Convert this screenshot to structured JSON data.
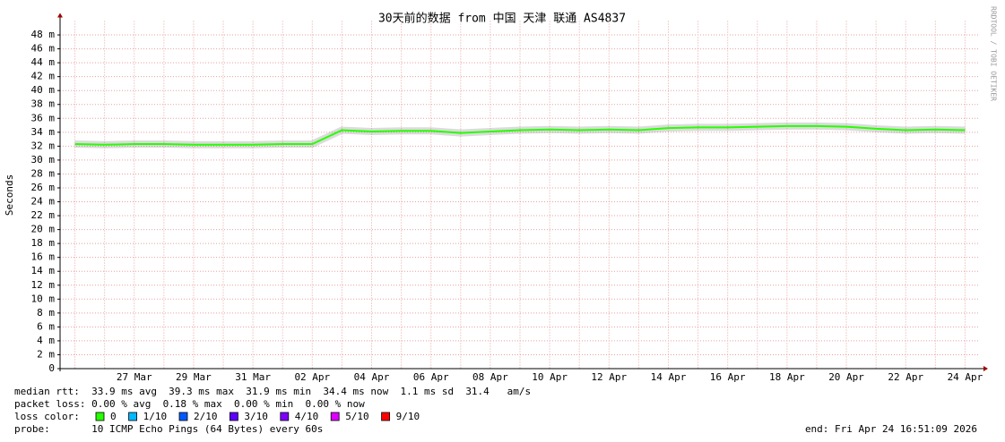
{
  "chart_data": {
    "type": "line",
    "title": "30天前的数据 from 中国 天津 联通 AS4837",
    "watermark": "RRDTOOL / TOBI OETIKER",
    "y_label": "Seconds",
    "categories": [
      null,
      null,
      "27 Mar",
      null,
      "29 Mar",
      null,
      "31 Mar",
      null,
      "02 Apr",
      null,
      "04 Apr",
      null,
      "06 Apr",
      null,
      "08 Apr",
      null,
      "10 Apr",
      null,
      "12 Apr",
      null,
      "14 Apr",
      null,
      "16 Apr",
      null,
      "18 Apr",
      null,
      "20 Apr",
      null,
      "22 Apr",
      null,
      "24 Apr"
    ],
    "series": [
      {
        "color": "#26ff00",
        "values": [
          0.0323,
          0.0322,
          0.0323,
          0.0323,
          0.0322,
          0.0322,
          0.0322,
          0.0323,
          0.0323,
          0.0343,
          0.0341,
          0.0342,
          0.0342,
          0.0339,
          0.0341,
          0.0343,
          0.0344,
          0.0343,
          0.0344,
          0.0343,
          0.0346,
          0.0347,
          0.0347,
          0.0348,
          0.0349,
          0.0349,
          0.0348,
          0.0345,
          0.0343,
          0.0344,
          0.0343
        ]
      }
    ],
    "ylim": [
      0,
      0.05
    ],
    "yticks": [
      0,
      {
        "value": 0.002,
        "label": "2 m"
      },
      {
        "value": 0.004,
        "label": "4 m"
      },
      {
        "value": 0.006,
        "label": "6 m"
      },
      {
        "value": 0.008,
        "label": "8 m"
      },
      {
        "value": 0.01,
        "label": "10 m"
      },
      {
        "value": 0.012,
        "label": "12 m"
      },
      {
        "value": 0.014,
        "label": "14 m"
      },
      {
        "value": 0.016,
        "label": "16 m"
      },
      {
        "value": 0.018,
        "label": "18 m"
      },
      {
        "value": 0.02,
        "label": "20 m"
      },
      {
        "value": 0.022,
        "label": "22 m"
      },
      {
        "value": 0.024,
        "label": "24 m"
      },
      {
        "value": 0.026,
        "label": "26 m"
      },
      {
        "value": 0.028,
        "label": "28 m"
      },
      {
        "value": 0.03,
        "label": "30 m"
      },
      {
        "value": 0.032,
        "label": "32 m"
      },
      {
        "value": 0.034,
        "label": "34 m"
      },
      {
        "value": 0.036,
        "label": "36 m"
      },
      {
        "value": 0.038,
        "label": "38 m"
      },
      {
        "value": 0.04,
        "label": "40 m"
      },
      {
        "value": 0.042,
        "label": "42 m"
      },
      {
        "value": 0.044,
        "label": "44 m"
      },
      {
        "value": 0.046,
        "label": "46 m"
      },
      {
        "value": 0.048,
        "label": "48 m"
      }
    ],
    "grid": true,
    "stats": [
      "median rtt:  33.9 ms avg  39.3 ms max  31.9 ms min  34.4 ms now  1.1 ms sd  31.4   am/s",
      "packet loss: 0.00 % avg  0.18 % max  0.00 % min  0.00 % now"
    ],
    "loss_title": "loss color:",
    "loss_legend": [
      {
        "label": "0",
        "color": "#26ff00"
      },
      {
        "label": "1/10",
        "color": "#00b8ff"
      },
      {
        "label": "2/10",
        "color": "#0059ff"
      },
      {
        "label": "3/10",
        "color": "#5e00ff"
      },
      {
        "label": "4/10",
        "color": "#7e00ff"
      },
      {
        "label": "5/10",
        "color": "#dd00ff"
      },
      {
        "label": "9/10",
        "color": "#ff0000"
      }
    ],
    "probe": "probe:       10 ICMP Echo Pings (64 Bytes) every 60s",
    "end": "end: Fri Apr 24 16:51:09 2026"
  }
}
